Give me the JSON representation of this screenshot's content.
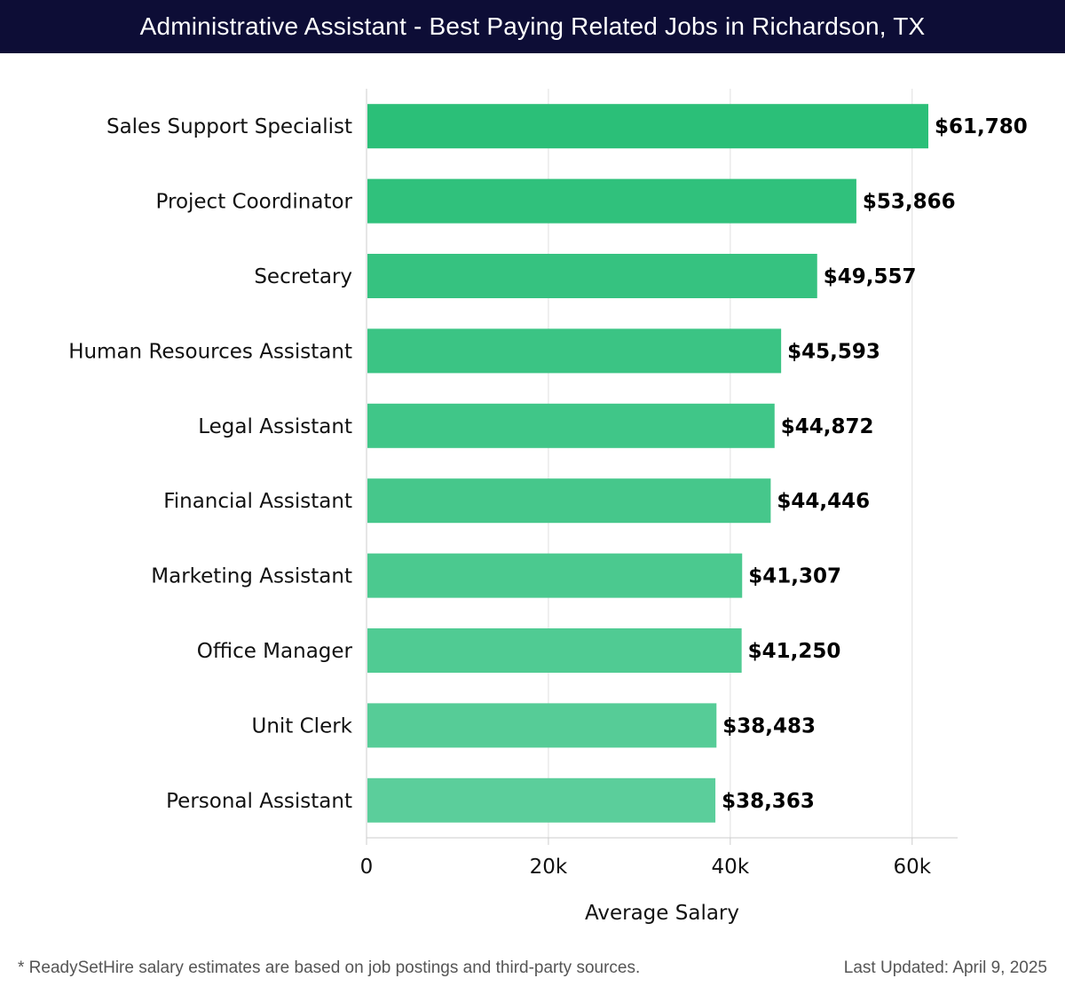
{
  "header": {
    "title": "Administrative Assistant - Best Paying Related Jobs in Richardson, TX"
  },
  "chart_data": {
    "type": "bar",
    "orientation": "horizontal",
    "title": "Administrative Assistant - Best Paying Related Jobs in Richardson, TX",
    "xlabel": "Average Salary",
    "ylabel": "",
    "xlim": [
      0,
      65000
    ],
    "x_ticks": [
      0,
      20000,
      40000,
      60000
    ],
    "x_tick_labels": [
      "0",
      "20k",
      "40k",
      "60k"
    ],
    "grid": "vertical",
    "categories": [
      "Sales Support Specialist",
      "Project Coordinator",
      "Secretary",
      "Human Resources Assistant",
      "Legal Assistant",
      "Financial Assistant",
      "Marketing Assistant",
      "Office Manager",
      "Unit Clerk",
      "Personal Assistant"
    ],
    "values": [
      61780,
      53866,
      49557,
      45593,
      44872,
      44446,
      41307,
      41250,
      38483,
      38363
    ],
    "value_labels": [
      "$61,780",
      "$53,866",
      "$49,557",
      "$45,593",
      "$44,872",
      "$44,446",
      "$41,307",
      "$41,250",
      "$38,483",
      "$38,363"
    ],
    "colors": {
      "bar_top": "#2bbf78",
      "bar_bottom": "#5bce9b",
      "grid": "#e0e0e0",
      "axis": "#cccccc"
    }
  },
  "footer": {
    "note": "* ReadySetHire salary estimates are based on job postings and third-party sources.",
    "updated": "Last Updated: April 9, 2025"
  }
}
